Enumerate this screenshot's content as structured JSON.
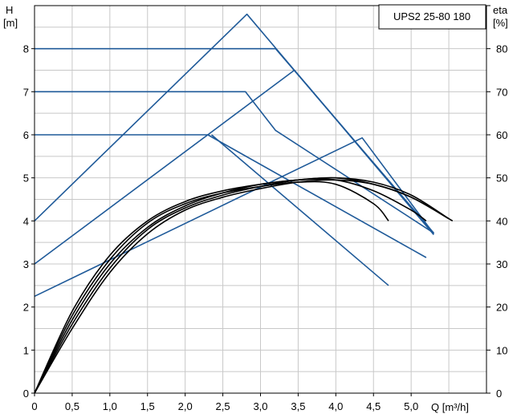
{
  "chart_data": {
    "type": "line",
    "title": "UPS2 25-80 180",
    "xlabel": "Q [m³/h]",
    "ylabel_left_top": "H",
    "ylabel_left_bottom": "[m]",
    "ylabel_right_top": "eta",
    "ylabel_right_bottom": "[%]",
    "xlim": [
      0,
      6.0
    ],
    "ylim_left": [
      0,
      9
    ],
    "ylim_right": [
      0,
      90
    ],
    "grid": true,
    "x_ticks": [
      "0",
      "0,5",
      "1,0",
      "1,5",
      "2,0",
      "2,5",
      "3,0",
      "3,5",
      "4,0",
      "4,5",
      "5,0"
    ],
    "y_ticks_left": [
      "0",
      "1",
      "2",
      "3",
      "4",
      "5",
      "6",
      "7",
      "8"
    ],
    "y_ticks_right": [
      "0",
      "10",
      "20",
      "30",
      "40",
      "50",
      "60",
      "70",
      "80"
    ],
    "colors": {
      "head_curves": "#1f5a99",
      "efficiency_curves": "#000000",
      "grid": "#c8c8c8"
    },
    "head_series": [
      {
        "points": [
          [
            0,
            8.0
          ],
          [
            3.2,
            8.0
          ],
          [
            5.3,
            3.72
          ]
        ]
      },
      {
        "points": [
          [
            0,
            7.0
          ],
          [
            2.8,
            7.0
          ],
          [
            3.2,
            6.1
          ],
          [
            5.3,
            3.72
          ]
        ]
      },
      {
        "points": [
          [
            0,
            6.0
          ],
          [
            2.3,
            6.0
          ],
          [
            5.2,
            3.15
          ]
        ]
      },
      {
        "points": [
          [
            0,
            4.0
          ],
          [
            2.82,
            8.8
          ],
          [
            5.3,
            3.68
          ]
        ]
      },
      {
        "points": [
          [
            0,
            3.0
          ],
          [
            3.45,
            7.5
          ],
          [
            5.3,
            3.7
          ]
        ]
      },
      {
        "points": [
          [
            0,
            2.25
          ],
          [
            4.35,
            5.93
          ],
          [
            5.3,
            3.7
          ]
        ]
      },
      {
        "points": [
          [
            2.35,
            6.0
          ],
          [
            4.7,
            2.5
          ]
        ]
      }
    ],
    "efficiency_series": [
      {
        "points": [
          [
            0,
            0
          ],
          [
            0.5,
            18
          ],
          [
            1.0,
            31
          ],
          [
            1.5,
            39.5
          ],
          [
            2.0,
            44
          ],
          [
            2.5,
            46.5
          ],
          [
            3.0,
            48
          ],
          [
            3.5,
            49
          ],
          [
            4.0,
            48.5
          ],
          [
            4.5,
            44
          ],
          [
            4.7,
            40
          ]
        ]
      },
      {
        "points": [
          [
            0,
            0
          ],
          [
            0.5,
            19
          ],
          [
            1.0,
            32
          ],
          [
            1.5,
            40
          ],
          [
            2.0,
            44.5
          ],
          [
            2.5,
            47
          ],
          [
            3.0,
            48.5
          ],
          [
            3.5,
            49.5
          ],
          [
            4.0,
            49.5
          ],
          [
            4.5,
            47
          ],
          [
            5.0,
            42.5
          ],
          [
            5.2,
            40
          ]
        ]
      },
      {
        "points": [
          [
            0,
            0
          ],
          [
            0.5,
            17
          ],
          [
            1.0,
            30
          ],
          [
            1.5,
            38.5
          ],
          [
            2.0,
            43.5
          ],
          [
            2.5,
            46.5
          ],
          [
            3.0,
            48.5
          ],
          [
            3.5,
            49.5
          ],
          [
            4.0,
            50
          ],
          [
            4.5,
            48.5
          ],
          [
            5.0,
            45.5
          ],
          [
            5.5,
            40.5
          ]
        ]
      },
      {
        "points": [
          [
            0,
            0
          ],
          [
            0.5,
            16
          ],
          [
            1.0,
            29
          ],
          [
            1.5,
            38
          ],
          [
            2.0,
            43
          ],
          [
            2.5,
            46
          ],
          [
            3.0,
            48
          ],
          [
            3.5,
            49.5
          ],
          [
            4.0,
            50
          ],
          [
            4.5,
            49
          ],
          [
            5.0,
            46
          ],
          [
            5.5,
            40.5
          ]
        ]
      },
      {
        "points": [
          [
            0,
            0
          ],
          [
            0.5,
            15
          ],
          [
            1.0,
            28
          ],
          [
            1.5,
            37
          ],
          [
            2.0,
            42.5
          ],
          [
            2.5,
            45.5
          ],
          [
            3.0,
            47.5
          ],
          [
            3.5,
            49
          ],
          [
            4.0,
            49.5
          ],
          [
            4.5,
            48.5
          ],
          [
            5.0,
            45.5
          ],
          [
            5.55,
            40
          ]
        ]
      }
    ]
  }
}
